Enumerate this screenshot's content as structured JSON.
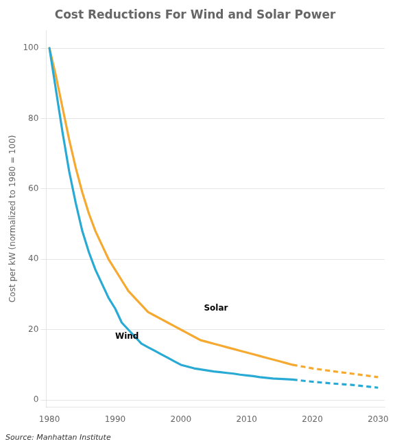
{
  "chart_data": {
    "type": "line",
    "title": "Cost Reductions For Wind and Solar Power",
    "ylabel": "Cost per kW (normalized to 1980 = 100)",
    "source": "Source: Manhattan Institute",
    "xlim": [
      1979.5,
      2031
    ],
    "ylim": [
      -2,
      105
    ],
    "xticks": [
      1980,
      1990,
      2000,
      2010,
      2020,
      2030
    ],
    "yticks": [
      0,
      20,
      40,
      60,
      80,
      100
    ],
    "grid": true,
    "series": [
      {
        "name": "Solar",
        "color": "#f5a930",
        "line_style": "solid",
        "x": [
          1980,
          1981,
          1982,
          1983,
          1984,
          1985,
          1986,
          1987,
          1988,
          1989,
          1990,
          1991,
          1992,
          1993,
          1994,
          1995,
          1996,
          1997,
          1998,
          1999,
          2000,
          2001,
          2002,
          2003,
          2004,
          2005,
          2006,
          2007,
          2008,
          2009,
          2010,
          2011,
          2012,
          2013,
          2014,
          2015,
          2016,
          2017
        ],
        "values": [
          100,
          92,
          83,
          74,
          66,
          59,
          53,
          48,
          44,
          40,
          37,
          34,
          31,
          29,
          27,
          25,
          24,
          23,
          22,
          21,
          20,
          19,
          18,
          17,
          16.5,
          16,
          15.5,
          15,
          14.5,
          14,
          13.5,
          13,
          12.5,
          12,
          11.5,
          11,
          10.5,
          10.0
        ]
      },
      {
        "name": "Solar",
        "color": "#f5a930",
        "line_style": "dashed",
        "x": [
          2017,
          2020,
          2023,
          2026,
          2030
        ],
        "values": [
          10.0,
          9.0,
          8.2,
          7.5,
          6.5
        ]
      },
      {
        "name": "Wind",
        "color": "#29aad4",
        "line_style": "solid",
        "x": [
          1980,
          1981,
          1982,
          1983,
          1984,
          1985,
          1986,
          1987,
          1988,
          1989,
          1990,
          1991,
          1992,
          1993,
          1994,
          1995,
          1996,
          1997,
          1998,
          1999,
          2000,
          2001,
          2002,
          2003,
          2004,
          2005,
          2006,
          2007,
          2008,
          2009,
          2010,
          2011,
          2012,
          2013,
          2014,
          2015,
          2016,
          2017
        ],
        "values": [
          100,
          88,
          76,
          65,
          56,
          48,
          42,
          37,
          33,
          29,
          26,
          22,
          20,
          18,
          16,
          15,
          14,
          13,
          12,
          11,
          10,
          9.5,
          9.0,
          8.7,
          8.4,
          8.1,
          7.9,
          7.7,
          7.5,
          7.2,
          7.0,
          6.8,
          6.5,
          6.3,
          6.1,
          6.0,
          5.9,
          5.8
        ]
      },
      {
        "name": "Wind",
        "color": "#29aad4",
        "line_style": "dashed",
        "x": [
          2017,
          2020,
          2023,
          2026,
          2030
        ],
        "values": [
          5.8,
          5.2,
          4.7,
          4.3,
          3.5
        ]
      }
    ],
    "annotations": [
      {
        "text": "Wind",
        "x": 1990.0,
        "y": 18
      },
      {
        "text": "Solar",
        "x": 2003.5,
        "y": 26
      }
    ]
  }
}
